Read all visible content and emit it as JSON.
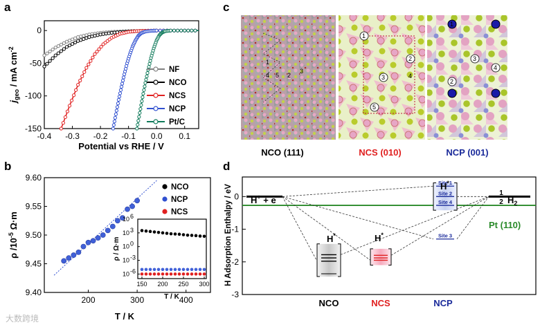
{
  "panels": {
    "a": "a",
    "b": "b",
    "c": "c",
    "d": "d"
  },
  "chart_data": [
    {
      "panel": "a",
      "type": "line",
      "xlabel": "Potential vs RHE / V",
      "ylabel_main": "j",
      "ylabel_sub": "geo",
      "ylabel_rest": " / mA cm",
      "ylabel_sup": "-2",
      "xlim": [
        -0.4,
        0.15
      ],
      "ylim": [
        -150,
        15
      ],
      "xticks": [
        "-0.4",
        "-0.3",
        "-0.2",
        "-0.1",
        "0.0",
        "0.1"
      ],
      "xtick_values": [
        -0.4,
        -0.3,
        -0.2,
        -0.1,
        0.0,
        0.1
      ],
      "yticks": [
        "0",
        "-50",
        "-100",
        "-150"
      ],
      "ytick_values": [
        0,
        -50,
        -100,
        -150
      ],
      "series": [
        {
          "name": "NF",
          "color": "#808080",
          "x": [
            -0.4,
            -0.36,
            -0.32,
            -0.28,
            -0.24,
            -0.2,
            -0.16,
            -0.12,
            -0.08,
            -0.04,
            0.0,
            0.05,
            0.1,
            0.15
          ],
          "y": [
            -38,
            -26,
            -17,
            -10,
            -6,
            -3.5,
            -2,
            -1.2,
            -0.6,
            -0.3,
            0,
            0,
            0,
            0
          ]
        },
        {
          "name": "NCO",
          "color": "#000000",
          "x": [
            -0.4,
            -0.36,
            -0.32,
            -0.28,
            -0.24,
            -0.2,
            -0.16,
            -0.12,
            -0.08,
            -0.04,
            0.0,
            0.05,
            0.1,
            0.15
          ],
          "y": [
            -55,
            -38,
            -25,
            -16,
            -10,
            -6,
            -3.5,
            -2,
            -1.1,
            -0.5,
            0,
            0,
            0,
            0
          ]
        },
        {
          "name": "NCS",
          "color": "#e02020",
          "x": [
            -0.34,
            -0.31,
            -0.28,
            -0.25,
            -0.22,
            -0.19,
            -0.16,
            -0.13,
            -0.1,
            -0.07,
            -0.04,
            0.0,
            0.05,
            0.1,
            0.15
          ],
          "y": [
            -150,
            -115,
            -83,
            -57,
            -36,
            -21,
            -11,
            -5,
            -2,
            -0.8,
            -0.3,
            0,
            0,
            0,
            0
          ]
        },
        {
          "name": "NCP",
          "color": "#3050d0",
          "x": [
            -0.155,
            -0.145,
            -0.135,
            -0.125,
            -0.115,
            -0.105,
            -0.095,
            -0.085,
            -0.075,
            -0.065,
            -0.055,
            -0.04,
            -0.02,
            0.0,
            0.05,
            0.1,
            0.15
          ],
          "y": [
            -150,
            -128,
            -106,
            -86,
            -67,
            -50,
            -36,
            -24,
            -15,
            -8,
            -4,
            -1.5,
            -0.4,
            0,
            0,
            0,
            0
          ]
        },
        {
          "name": "Pt/C",
          "color": "#0f7a5a",
          "x": [
            -0.07,
            -0.06,
            -0.05,
            -0.04,
            -0.03,
            -0.02,
            -0.01,
            0.0,
            0.01,
            0.02,
            0.03,
            0.05,
            0.1,
            0.15
          ],
          "y": [
            -150,
            -126,
            -102,
            -80,
            -60,
            -42,
            -27,
            -15,
            -7,
            -3,
            -1,
            0,
            0,
            0
          ]
        }
      ]
    },
    {
      "panel": "b",
      "type": "scatter",
      "xlabel": "T / K",
      "ylabel": "ρ /10",
      "ylabel_sup": "-5",
      "ylabel_unit": " Ω·m",
      "xlim": [
        110,
        450
      ],
      "ylim": [
        9.4,
        9.6
      ],
      "xticks": [
        "200",
        "300",
        "400"
      ],
      "xtick_values": [
        200,
        300,
        400
      ],
      "yticks": [
        "9.60",
        "9.55",
        "9.50",
        "9.45",
        "9.40"
      ],
      "ytick_values": [
        9.6,
        9.55,
        9.5,
        9.45,
        9.4
      ],
      "legend": [
        "NCO",
        "NCP",
        "NCS"
      ],
      "legend_colors": [
        "#000000",
        "#3050d0",
        "#e02020"
      ],
      "series": [
        {
          "name": "NCP",
          "color": "#4060d8",
          "x": [
            150,
            160,
            170,
            180,
            190,
            200,
            210,
            220,
            230,
            240,
            250,
            260,
            270,
            280,
            290,
            300
          ],
          "y": [
            9.455,
            9.46,
            9.465,
            9.47,
            9.48,
            9.487,
            9.49,
            9.495,
            9.5,
            9.508,
            9.515,
            9.525,
            9.53,
            9.545,
            9.55,
            9.56
          ]
        }
      ],
      "fit_line": {
        "x": [
          130,
          340
        ],
        "y": [
          9.43,
          9.595
        ]
      },
      "inset": {
        "xlabel": "T / K",
        "ylabel": "ρ / Ω·m",
        "xticks": [
          "150",
          "200",
          "250",
          "300"
        ],
        "xtick_values": [
          150,
          200,
          250,
          300
        ],
        "yticks": [
          "10",
          "10",
          "10"
        ],
        "ytick_sups": [
          "6",
          "3",
          "0"
        ],
        "ytick_values": [
          6,
          3,
          0
        ],
        "yticks2": [
          "10",
          "10"
        ],
        "ytick2_sups": [
          "-3",
          "-6"
        ],
        "ytick2_values": [
          -3,
          -6
        ],
        "xlim": [
          140,
          305
        ],
        "ylim": [
          -7,
          6
        ],
        "series": [
          {
            "name": "NCO",
            "color": "#000000",
            "x": [
              150,
              160,
              170,
              180,
              190,
              200,
              210,
              220,
              230,
              240,
              250,
              260,
              270,
              280,
              290,
              300
            ],
            "y": [
              3.5,
              3.4,
              3.3,
              3.2,
              3.1,
              3.0,
              2.9,
              2.8,
              2.75,
              2.7,
              2.6,
              2.5,
              2.45,
              2.4,
              2.3,
              2.25
            ]
          },
          {
            "name": "NCP",
            "color": "#4060d8",
            "x": [
              150,
              160,
              170,
              180,
              190,
              200,
              210,
              220,
              230,
              240,
              250,
              260,
              270,
              280,
              290,
              300
            ],
            "y": [
              -5.0,
              -5.0,
              -5.0,
              -5.0,
              -5.0,
              -5.0,
              -5.0,
              -5.0,
              -5.0,
              -5.0,
              -5.0,
              -5.0,
              -5.0,
              -5.0,
              -5.0,
              -5.0
            ]
          },
          {
            "name": "NCS",
            "color": "#e02020",
            "x": [
              150,
              160,
              170,
              180,
              190,
              200,
              210,
              220,
              230,
              240,
              250,
              260,
              270,
              280,
              290,
              300
            ],
            "y": [
              -6.0,
              -6.0,
              -6.0,
              -6.0,
              -6.0,
              -6.0,
              -6.0,
              -6.0,
              -6.0,
              -6.0,
              -6.0,
              -6.0,
              -6.0,
              -6.0,
              -6.0,
              -6.0
            ]
          }
        ]
      }
    },
    {
      "panel": "d",
      "type": "diagram",
      "ylabel": "H Adsorption Enthalpy / eV",
      "ylim": [
        -3,
        0.6
      ],
      "yticks": [
        "0",
        "-1",
        "-2",
        "-3"
      ],
      "ytick_values": [
        0,
        -1,
        -2,
        -3
      ],
      "categories": [
        "NCO",
        "NCS",
        "NCP"
      ],
      "category_colors": [
        "#000000",
        "#e02020",
        "#1a2a9a"
      ],
      "initial_label": "H",
      "initial_sup": "+",
      "initial_rest": " + e",
      "initial_sup2": "−",
      "final_label_num": "1",
      "final_label_den": "2",
      "final_label": "H",
      "final_sub": "2",
      "pt_label": "Pt (110)",
      "pt_value": -0.27,
      "pt_color": "#2a8a2a",
      "hstar": "H",
      "hstar_sup": "*",
      "nco_values": [
        -1.78,
        -1.88,
        -1.98
      ],
      "ncs_values": [
        -1.8,
        -1.88,
        -1.95
      ],
      "ncp_sites": [
        {
          "label": "Site 1",
          "value": 0.32
        },
        {
          "label": "Site 2",
          "value": 0.0
        },
        {
          "label": "Site 4",
          "value": -0.27
        },
        {
          "label": "Site 3",
          "value": -1.3
        }
      ]
    }
  ],
  "panel_c": {
    "captions": [
      "NCO (111)",
      "NCS (010)",
      "NCP (001)"
    ],
    "caption_colors": [
      "#000000",
      "#e02020",
      "#1a2a9a"
    ],
    "nco_sites": [
      "1",
      "2",
      "3",
      "4",
      "5"
    ],
    "ncs_sites": [
      "1",
      "2",
      "3",
      "4",
      "5"
    ],
    "ncp_sites": [
      "1",
      "2",
      "3",
      "4"
    ]
  },
  "watermark": "大数跨境"
}
